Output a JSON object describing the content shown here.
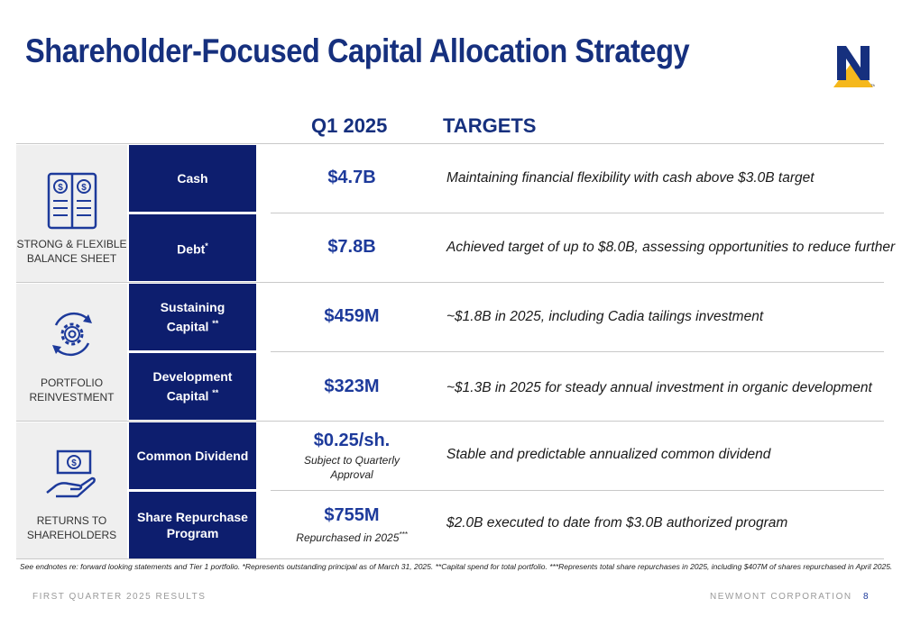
{
  "slide": {
    "title": "Shareholder-Focused Capital Allocation Strategy",
    "logo": "newmont-n-logo"
  },
  "columns": {
    "q1": "Q1 2025",
    "targets": "TARGETS"
  },
  "groups": [
    {
      "label_line1": "STRONG & FLEXIBLE",
      "label_line2": "BALANCE SHEET",
      "icon": "ledger-dollar-icon"
    },
    {
      "label_line1": "PORTFOLIO",
      "label_line2": "REINVESTMENT",
      "icon": "gear-cycle-icon"
    },
    {
      "label_line1": "RETURNS TO",
      "label_line2": "SHAREHOLDERS",
      "icon": "hand-cash-icon"
    }
  ],
  "rows": [
    {
      "label": "Cash",
      "value": "$4.7B",
      "target": "Maintaining financial flexibility with cash above $3.0B target"
    },
    {
      "label": "Debt",
      "label_mark": "*",
      "value": "$7.8B",
      "target": "Achieved target of up to $8.0B, assessing opportunities to reduce further"
    },
    {
      "label_line1": "Sustaining",
      "label_line2": "Capital",
      "label_mark": "**",
      "value": "$459M",
      "target": "~$1.8B in 2025, including Cadia tailings investment"
    },
    {
      "label_line1": "Development",
      "label_line2": "Capital",
      "label_mark": "**",
      "value": "$323M",
      "target": "~$1.3B in 2025 for steady annual investment in organic development"
    },
    {
      "label": "Common Dividend",
      "value": "$0.25/sh.",
      "sub_line1": "Subject to Quarterly",
      "sub_line2": "Approval",
      "target": "Stable and predictable annualized common dividend"
    },
    {
      "label_line1": "Share Repurchase",
      "label_line2": "Program",
      "value": "$755M",
      "sub": "Repurchased in 2025",
      "sub_mark": "***",
      "target": "$2.0B executed to date from $3.0B authorized program"
    }
  ],
  "footnote": "See endnotes re: forward looking statements and Tier 1 portfolio. *Represents outstanding principal as of March 31, 2025. **Capital spend for total portfolio. ***Represents total share repurchases in 2025, including $407M of shares repurchased in April 2025.",
  "footer": {
    "left": "FIRST QUARTER 2025 RESULTS",
    "right": "NEWMONT CORPORATION",
    "page": "8"
  },
  "colors": {
    "navy": "#0d1e6e",
    "title_blue": "#16307e",
    "value_blue": "#1d3a9b",
    "logo_gold": "#f5b81c",
    "group_gray": "#efefef"
  }
}
